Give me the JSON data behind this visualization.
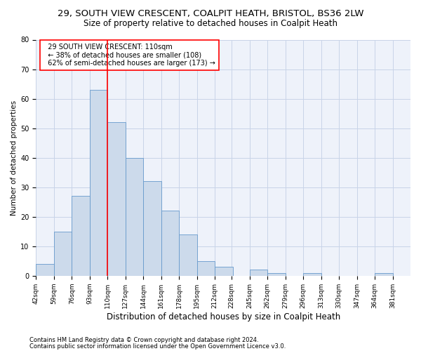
{
  "title1": "29, SOUTH VIEW CRESCENT, COALPIT HEATH, BRISTOL, BS36 2LW",
  "title2": "Size of property relative to detached houses in Coalpit Heath",
  "xlabel": "Distribution of detached houses by size in Coalpit Heath",
  "ylabel": "Number of detached properties",
  "footnote1": "Contains HM Land Registry data © Crown copyright and database right 2024.",
  "footnote2": "Contains public sector information licensed under the Open Government Licence v3.0.",
  "annotation_line1": "  29 SOUTH VIEW CRESCENT: 110sqm",
  "annotation_line2": "  ← 38% of detached houses are smaller (108)",
  "annotation_line3": "  62% of semi-detached houses are larger (173) →",
  "bar_color": "#ccdaeb",
  "bar_edge_color": "#6699cc",
  "red_line_x": 110,
  "bins": [
    42,
    59,
    76,
    93,
    110,
    127,
    144,
    161,
    178,
    195,
    212,
    228,
    245,
    262,
    279,
    296,
    313,
    330,
    347,
    364,
    381
  ],
  "counts": [
    4,
    15,
    27,
    63,
    52,
    40,
    32,
    22,
    14,
    5,
    3,
    0,
    2,
    1,
    0,
    1,
    0,
    0,
    0,
    1
  ],
  "ylim": [
    0,
    80
  ],
  "yticks": [
    0,
    10,
    20,
    30,
    40,
    50,
    60,
    70,
    80
  ],
  "grid_color": "#c8d4e8",
  "background_color": "#eef2fa",
  "title1_fontsize": 9.5,
  "title2_fontsize": 8.5,
  "xlabel_fontsize": 8.5,
  "ylabel_fontsize": 7.5,
  "annotation_fontsize": 7.0,
  "tick_fontsize": 6.5,
  "footnote_fontsize": 6.0
}
